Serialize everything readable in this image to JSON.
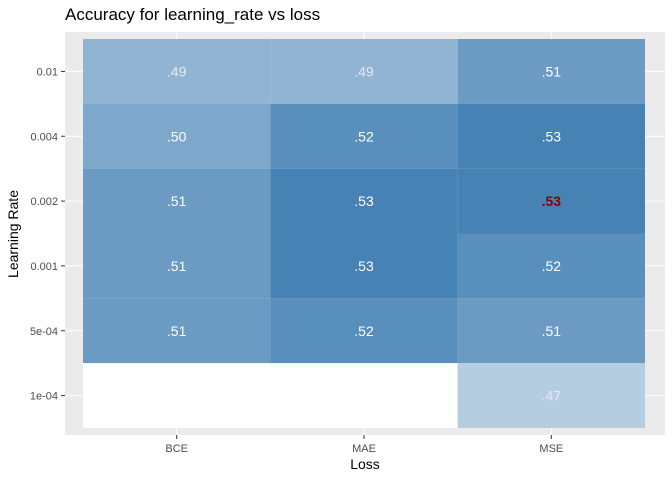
{
  "chart_data": {
    "type": "heatmap",
    "title": "Accuracy for learning_rate vs loss",
    "xlabel": "Loss",
    "ylabel": "Learning Rate",
    "x_categories": [
      "BCE",
      "MAE",
      "MSE"
    ],
    "y_categories": [
      "0.01",
      "0.004",
      "0.002",
      "0.001",
      "5e-04",
      "1e-04"
    ],
    "cells": [
      {
        "x": "BCE",
        "y": "0.01",
        "value": 0.49,
        "label": ".49",
        "label_color": "#e4ebf4"
      },
      {
        "x": "MAE",
        "y": "0.01",
        "value": 0.49,
        "label": ".49",
        "label_color": "#e4ebf4"
      },
      {
        "x": "MSE",
        "y": "0.01",
        "value": 0.51,
        "label": ".51",
        "label_color": "#ffffff"
      },
      {
        "x": "BCE",
        "y": "0.004",
        "value": 0.5,
        "label": ".50",
        "label_color": "#ffffff"
      },
      {
        "x": "MAE",
        "y": "0.004",
        "value": 0.52,
        "label": ".52",
        "label_color": "#ffffff"
      },
      {
        "x": "MSE",
        "y": "0.004",
        "value": 0.53,
        "label": ".53",
        "label_color": "#ffffff"
      },
      {
        "x": "BCE",
        "y": "0.002",
        "value": 0.51,
        "label": ".51",
        "label_color": "#ffffff"
      },
      {
        "x": "MAE",
        "y": "0.002",
        "value": 0.53,
        "label": ".53",
        "label_color": "#ffffff"
      },
      {
        "x": "MSE",
        "y": "0.002",
        "value": 0.53,
        "label": ".53",
        "label_color": "#8b0000",
        "highlight": true
      },
      {
        "x": "BCE",
        "y": "0.001",
        "value": 0.51,
        "label": ".51",
        "label_color": "#ffffff"
      },
      {
        "x": "MAE",
        "y": "0.001",
        "value": 0.53,
        "label": ".53",
        "label_color": "#ffffff"
      },
      {
        "x": "MSE",
        "y": "0.001",
        "value": 0.52,
        "label": ".52",
        "label_color": "#ffffff"
      },
      {
        "x": "BCE",
        "y": "5e-04",
        "value": 0.51,
        "label": ".51",
        "label_color": "#ffffff"
      },
      {
        "x": "MAE",
        "y": "5e-04",
        "value": 0.52,
        "label": ".52",
        "label_color": "#ffffff"
      },
      {
        "x": "MSE",
        "y": "5e-04",
        "value": 0.51,
        "label": ".51",
        "label_color": "#ffffff"
      },
      {
        "x": "BCE",
        "y": "1e-04",
        "value": 0.43,
        "label": "",
        "label_color": "#ffffff"
      },
      {
        "x": "MAE",
        "y": "1e-04",
        "value": 0.43,
        "label": "",
        "label_color": "#ffffff"
      },
      {
        "x": "MSE",
        "y": "1e-04",
        "value": 0.47,
        "label": ".47",
        "label_color": "#e4ebf4"
      }
    ],
    "color_scale": {
      "low": 0.43,
      "high": 0.53,
      "low_color": "#ffffff",
      "high_color": "#4682b4"
    },
    "grid": true,
    "legend": "none",
    "colors": {
      "panel_background": "#ebebeb",
      "grid_line": "#ffffff",
      "highlight_label": "#8b0000"
    }
  }
}
